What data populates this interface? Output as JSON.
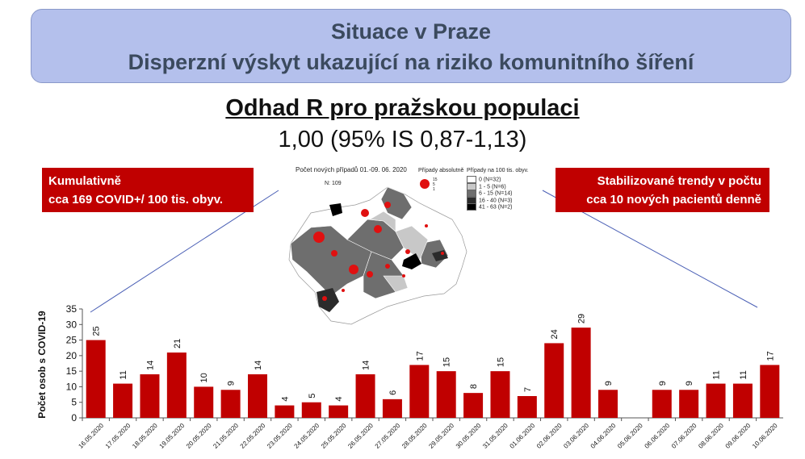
{
  "banner": {
    "line1": "Situace v Praze",
    "line2": "Disperzní výskyt ukazující na riziko komunitního šíření"
  },
  "headline": "Odhad R pro pražskou populaci",
  "estimate": "1,00 (95% IS 0,87-1,13)",
  "left_box": {
    "line1": "Kumulativně",
    "line2": "cca 169 COVID+/ 100 tis. obyv."
  },
  "right_box": {
    "line1": "Stabilizované trendy v počtu",
    "line2": "cca 10 nových pacientů denně"
  },
  "map": {
    "title": "Počet nových případů 01.-09. 06. 2020",
    "n": "N: 109",
    "legend_abs_title": "Případy absolutně",
    "legend_abs_values": [
      "15",
      "5",
      "1"
    ],
    "legend_100_title": "Případy na 100 tis. obyv.",
    "legend_100": [
      {
        "label": "0 (N=32)",
        "color": "#ffffff"
      },
      {
        "label": "1 - 5 (N=6)",
        "color": "#c8c8c8"
      },
      {
        "label": "6 - 15 (N=14)",
        "color": "#6e6e6e"
      },
      {
        "label": "16 - 40 (N=3)",
        "color": "#2b2b2b"
      },
      {
        "label": "41 - 63 (N=2)",
        "color": "#000000"
      }
    ],
    "bubble_color": "#e01010"
  },
  "colors": {
    "bar": "#c00000",
    "banner_bg": "#b4c0ec",
    "box_bg": "#c00000",
    "connector": "#4a5fb5"
  },
  "chart_data": {
    "type": "bar",
    "ylabel": "Počet osob s COVID-19",
    "ylim": [
      0,
      35
    ],
    "yticks": [
      0,
      5,
      10,
      15,
      20,
      25,
      30,
      35
    ],
    "categories": [
      "16.05.2020",
      "17.05.2020",
      "18.05.2020",
      "19.05.2020",
      "20.05.2020",
      "21.05.2020",
      "22.05.2020",
      "23.05.2020",
      "24.05.2020",
      "25.05.2020",
      "26.05.2020",
      "27.05.2020",
      "28.05.2020",
      "29.05.2020",
      "30.05.2020",
      "31.05.2020",
      "01.06.2020",
      "02.06.2020",
      "03.06.2020",
      "04.06.2020",
      "05.06.2020",
      "06.06.2020",
      "07.06.2020",
      "08.06.2020",
      "09.06.2020",
      "10.06.2020"
    ],
    "values": [
      25,
      11,
      14,
      21,
      10,
      9,
      14,
      4,
      5,
      4,
      14,
      6,
      17,
      15,
      8,
      15,
      7,
      24,
      29,
      9,
      0,
      9,
      9,
      11,
      11,
      17
    ],
    "data_labels": [
      "25",
      "11",
      "14",
      "21",
      "10",
      "9",
      "14",
      "4",
      "5",
      "4",
      "14",
      "6",
      "17",
      "15",
      "8",
      "15",
      "7",
      "24",
      "29",
      "9",
      "",
      "9",
      "9",
      "11",
      "11",
      "17"
    ],
    "grid": false,
    "legend": "none"
  }
}
